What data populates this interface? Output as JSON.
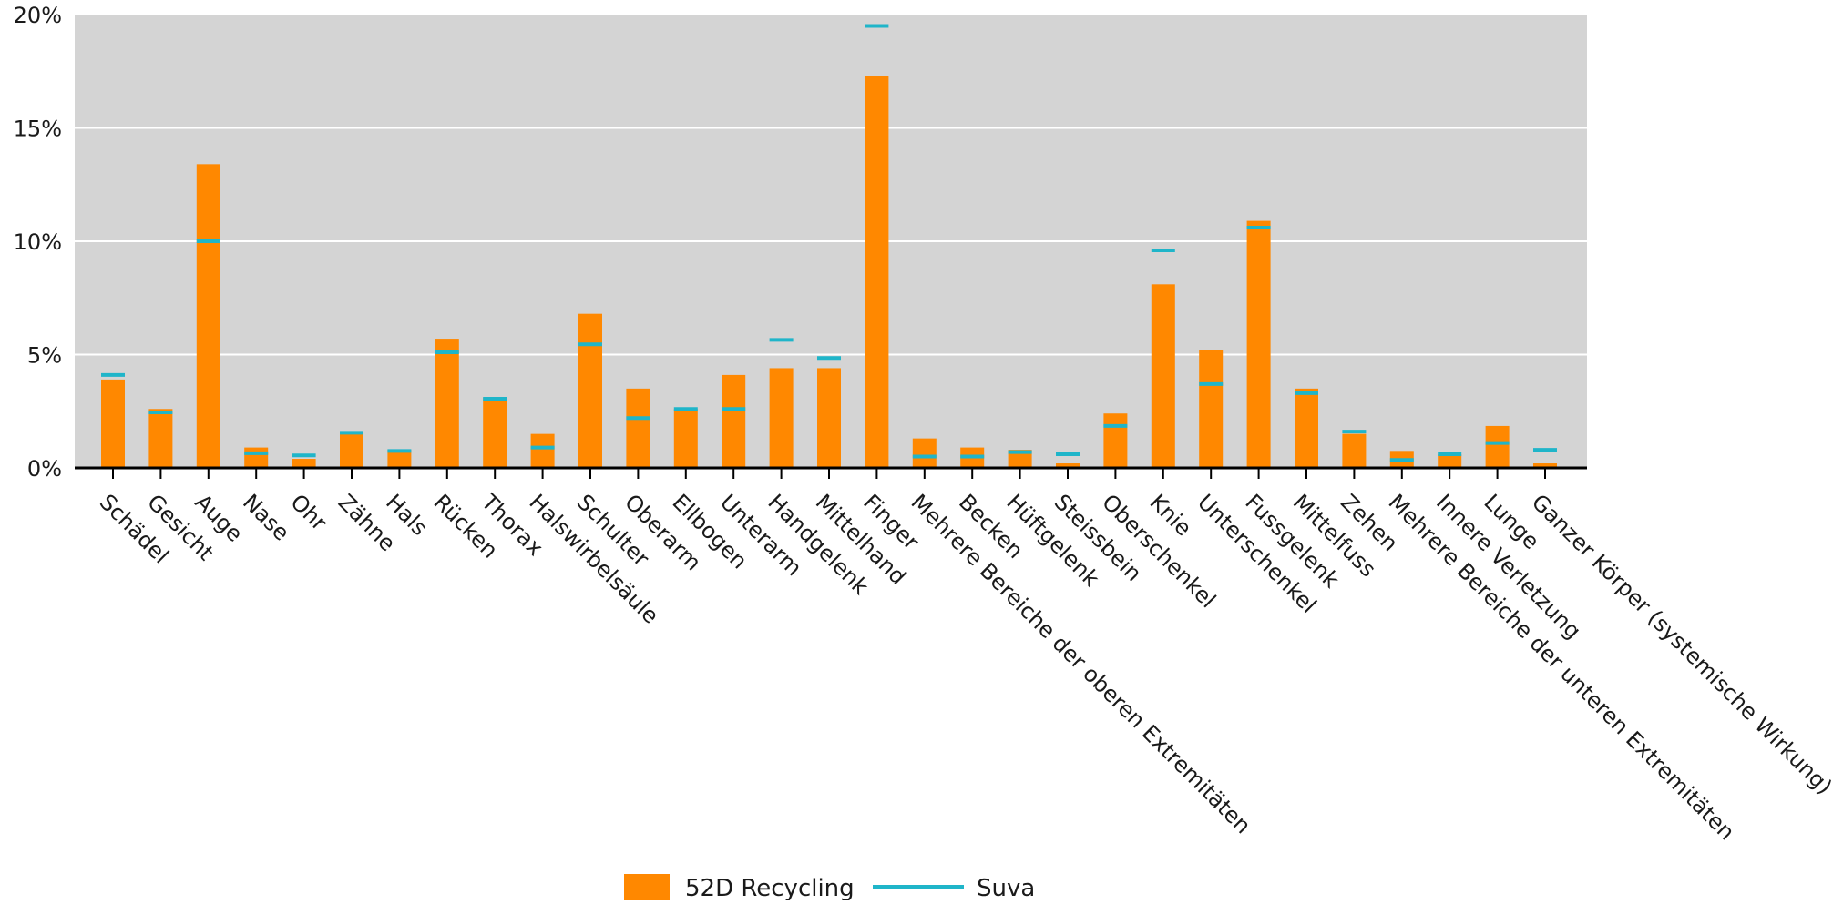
{
  "chart_data": {
    "type": "bar",
    "title": "",
    "xlabel": "",
    "ylabel": "",
    "ylim": [
      0,
      20
    ],
    "y_ticks": [
      0,
      5,
      10,
      15,
      20
    ],
    "y_tick_labels": [
      "0%",
      "5%",
      "10%",
      "15%",
      "20%"
    ],
    "grid": true,
    "legend_position": "bottom-center",
    "categories": [
      "Schädel",
      "Gesicht",
      "Auge",
      "Nase",
      "Ohr",
      "Zähne",
      "Hals",
      "Rücken",
      "Thorax",
      "Halswirbelsäule",
      "Schulter",
      "Oberarm",
      "Ellbogen",
      "Unterarm",
      "Handgelenk",
      "Mittelhand",
      "Finger",
      "Mehrere Bereiche der oberen Extremitäten",
      "Becken",
      "Hüftgelenk",
      "Steissbein",
      "Oberschenkel",
      "Knie",
      "Unterschenkel",
      "Fussgelenk",
      "Mittelfuss",
      "Zehen",
      "Mehrere Bereiche der unteren Extremitäten",
      "Innere Verletzung",
      "Lunge",
      "Ganzer Körper (systemische Wirkung)"
    ],
    "series": [
      {
        "name": "52D Recycling",
        "kind": "bar",
        "color": "#ff8800",
        "values": [
          3.9,
          2.6,
          13.4,
          0.9,
          0.4,
          1.6,
          0.8,
          5.7,
          3.1,
          1.5,
          6.8,
          3.5,
          2.6,
          4.1,
          4.4,
          4.4,
          17.3,
          1.3,
          0.9,
          0.8,
          0.2,
          2.4,
          8.1,
          5.2,
          10.9,
          3.5,
          1.5,
          0.75,
          0.6,
          1.85,
          0.2
        ]
      },
      {
        "name": "Suva",
        "kind": "marker",
        "color": "#1fb5c9",
        "values": [
          4.1,
          2.45,
          10.0,
          0.65,
          0.55,
          1.55,
          0.75,
          5.1,
          3.05,
          0.9,
          5.45,
          2.2,
          2.6,
          2.6,
          5.65,
          4.85,
          19.5,
          0.5,
          0.5,
          0.7,
          0.6,
          1.85,
          9.6,
          3.7,
          10.6,
          3.3,
          1.6,
          0.35,
          0.6,
          1.1,
          0.8
        ]
      }
    ]
  }
}
